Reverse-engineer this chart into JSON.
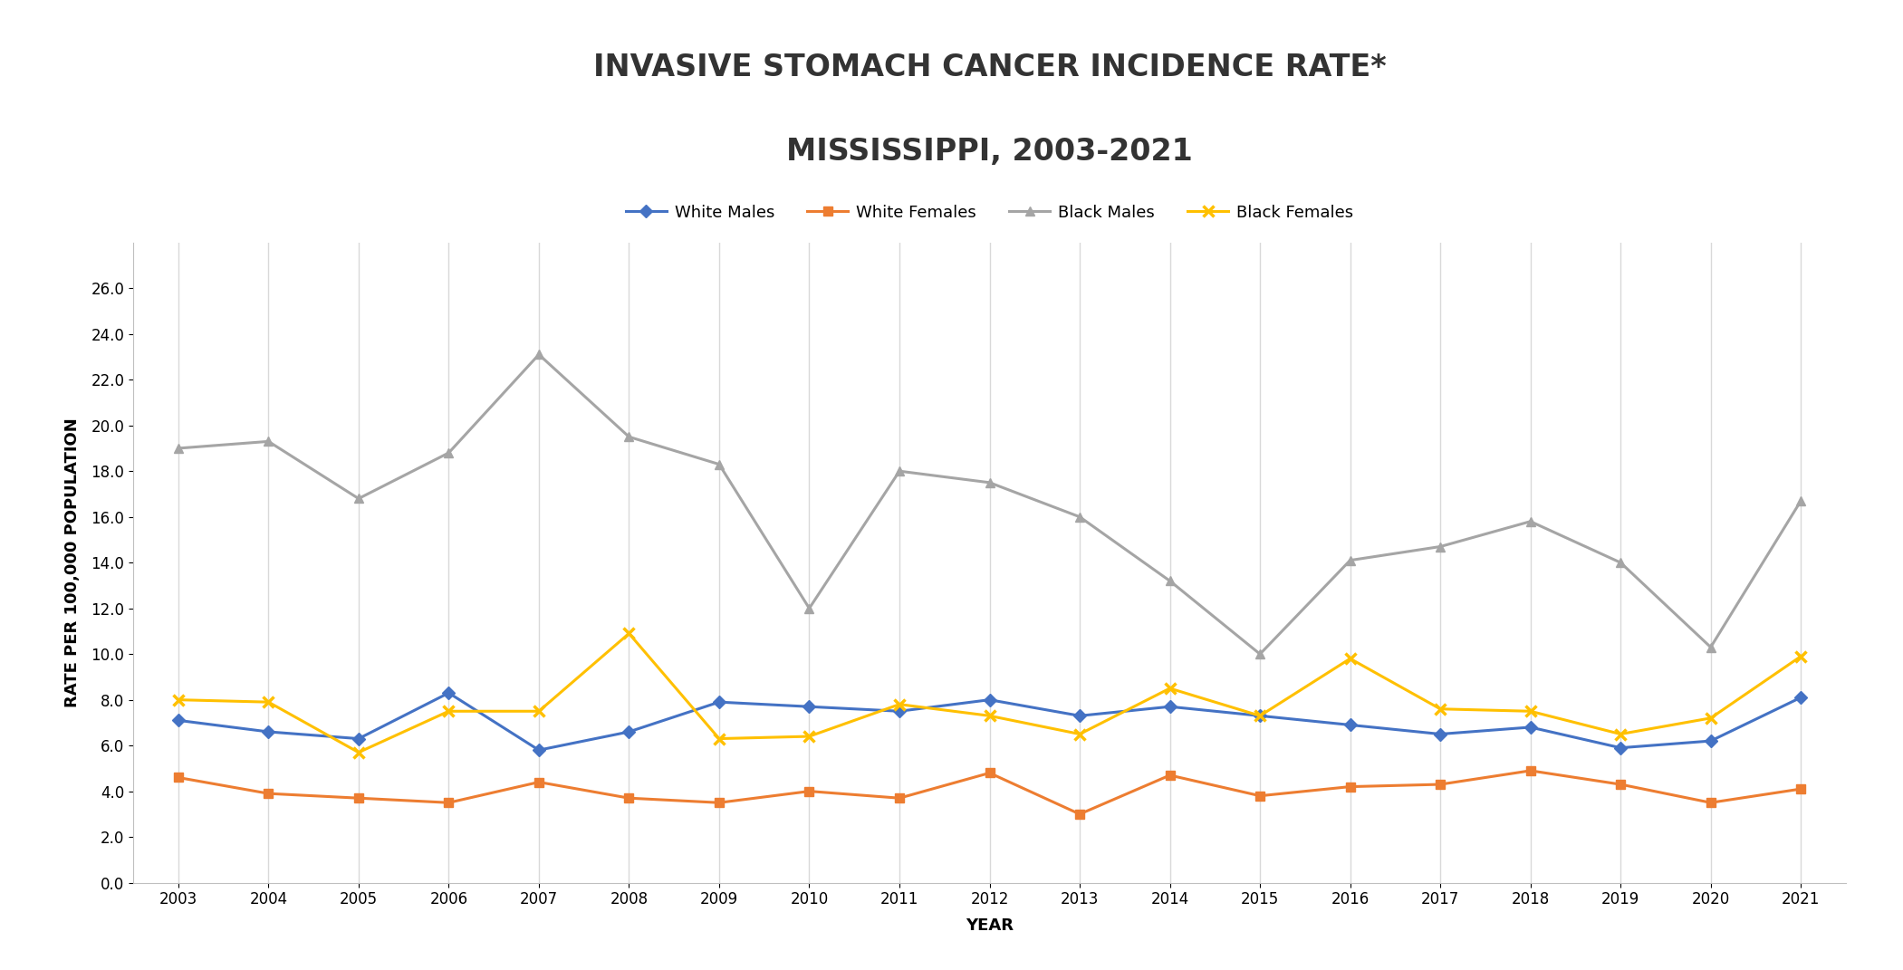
{
  "title_line1": "INVASIVE STOMACH CANCER INCIDENCE RATE*",
  "title_line2": "MISSISSIPPI, 2003-2021",
  "xlabel": "YEAR",
  "ylabel": "RATE PER 100,000 POPULATION",
  "years": [
    2003,
    2004,
    2005,
    2006,
    2007,
    2008,
    2009,
    2010,
    2011,
    2012,
    2013,
    2014,
    2015,
    2016,
    2017,
    2018,
    2019,
    2020,
    2021
  ],
  "white_males": [
    7.1,
    6.6,
    6.3,
    8.3,
    5.8,
    6.6,
    7.9,
    7.7,
    7.5,
    8.0,
    7.3,
    7.7,
    7.3,
    6.9,
    6.5,
    6.8,
    5.9,
    6.2,
    8.1
  ],
  "white_females": [
    4.6,
    3.9,
    3.7,
    3.5,
    4.4,
    3.7,
    3.5,
    4.0,
    3.7,
    4.8,
    3.0,
    4.7,
    3.8,
    4.2,
    4.3,
    4.9,
    4.3,
    3.5,
    4.1
  ],
  "black_males": [
    19.0,
    19.3,
    16.8,
    18.8,
    23.1,
    19.5,
    18.3,
    12.0,
    18.0,
    17.5,
    16.0,
    13.2,
    10.0,
    14.1,
    14.7,
    15.8,
    14.0,
    10.3,
    16.7
  ],
  "black_females": [
    8.0,
    7.9,
    5.7,
    7.5,
    7.5,
    10.9,
    6.3,
    6.4,
    7.8,
    7.3,
    6.5,
    8.5,
    7.3,
    9.8,
    7.6,
    7.5,
    6.5,
    7.2,
    9.9
  ],
  "white_males_color": "#4472C4",
  "white_females_color": "#ED7D31",
  "black_males_color": "#A5A5A5",
  "black_females_color": "#FFC000",
  "ylim": [
    0,
    28
  ],
  "yticks": [
    0.0,
    2.0,
    4.0,
    6.0,
    8.0,
    10.0,
    12.0,
    14.0,
    16.0,
    18.0,
    20.0,
    22.0,
    24.0,
    26.0
  ],
  "background_color": "#FFFFFF",
  "plot_bg_color": "#FFFFFF",
  "grid_color": "#D9D9D9",
  "title_fontsize": 24,
  "axis_label_fontsize": 13,
  "tick_fontsize": 12,
  "legend_fontsize": 13,
  "linewidth": 2.2,
  "markersize": 7
}
